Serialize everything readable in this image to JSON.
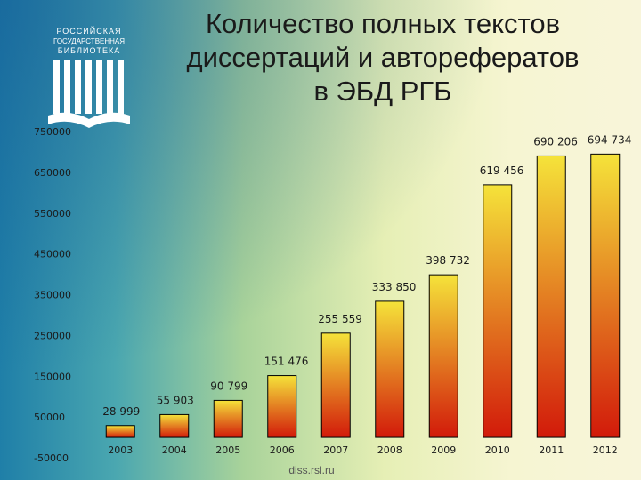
{
  "title_lines": [
    "Количество полных текстов",
    "диссертаций и авторефератов",
    "в ЭБД РГБ"
  ],
  "logo": {
    "text_lines": [
      "РОССИЙСКАЯ",
      "ГОСУДАРСТВЕННАЯ",
      "БИБЛИОТЕКА"
    ],
    "color": "#ffffff"
  },
  "watermark": "diss.rsl.ru",
  "colors": {
    "bar_top": "#f5e33a",
    "bar_bottom": "#d21a0a",
    "bar_stroke": "#000000",
    "text": "#1a1a1a"
  },
  "chart_data": {
    "type": "bar",
    "title": "Количество полных текстов диссертаций и авторефератов в ЭБД РГБ",
    "categories": [
      "2003",
      "2004",
      "2005",
      "2006",
      "2007",
      "2008",
      "2009",
      "2010",
      "2011",
      "2012"
    ],
    "values": [
      28999,
      55903,
      90799,
      151476,
      255559,
      333850,
      398732,
      619456,
      690206,
      694734
    ],
    "data_labels": [
      "28 999",
      "55 903",
      "90 799",
      "151 476",
      "255 559",
      "333 850",
      "398 732",
      "619 456",
      "690 206",
      "694 734"
    ],
    "yticks": [
      -50000,
      50000,
      150000,
      250000,
      350000,
      450000,
      550000,
      650000,
      750000
    ],
    "ylim": [
      -50000,
      750000
    ],
    "xlabel": "",
    "ylabel": "",
    "grid": false,
    "legend": "none"
  }
}
